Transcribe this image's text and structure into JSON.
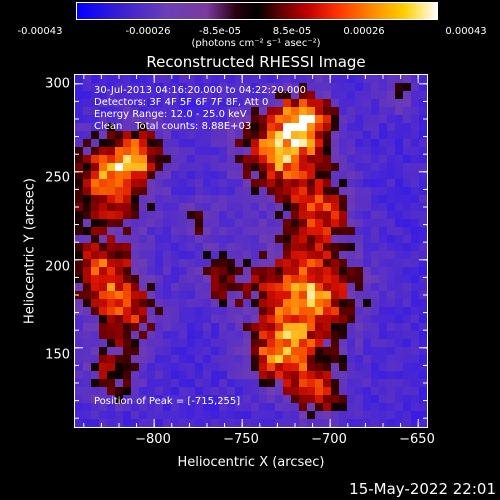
{
  "colorbar": {
    "tick_labels": [
      "-0.00043",
      "-0.00026",
      "-8.5e-05",
      "8.5e-05",
      "0.00026",
      "0.00043"
    ],
    "units_label": "(photons cm⁻² s⁻¹ asec⁻²)",
    "range": [
      -0.00043,
      0.00043
    ]
  },
  "chart_data": {
    "type": "heatmap",
    "title": "Reconstructed RHESSI Image",
    "xlabel": "Heliocentric X (arcsec)",
    "ylabel": "Heliocentric Y (arcsec)",
    "xlim": [
      -845,
      -645
    ],
    "ylim": [
      105,
      305
    ],
    "x_ticks": [
      -800,
      -750,
      -700,
      -650
    ],
    "x_tick_labels": [
      "−800",
      "−750",
      "−700",
      "−650"
    ],
    "y_ticks": [
      150,
      200,
      250,
      300
    ],
    "y_tick_labels": [
      "150",
      "200",
      "250",
      "300"
    ],
    "peak_position": [
      -715,
      255
    ]
  },
  "annotations": {
    "time_range": "30-Jul-2013 04:16:20.000 to 04:22:20.000",
    "detectors": "Detectors: 3F 4F 5F 6F 7F 8F, Att 0",
    "energy_range": "Energy Range: 12.0 - 25.0 keV",
    "clean_counts": "Clean    Total counts: 8.88E+03",
    "peak_label": "Position of Peak = [-715,255]"
  },
  "footer": {
    "date": "15-May-2022 22:01"
  },
  "colors": {
    "background": "#000000",
    "text": "#ffffff"
  }
}
